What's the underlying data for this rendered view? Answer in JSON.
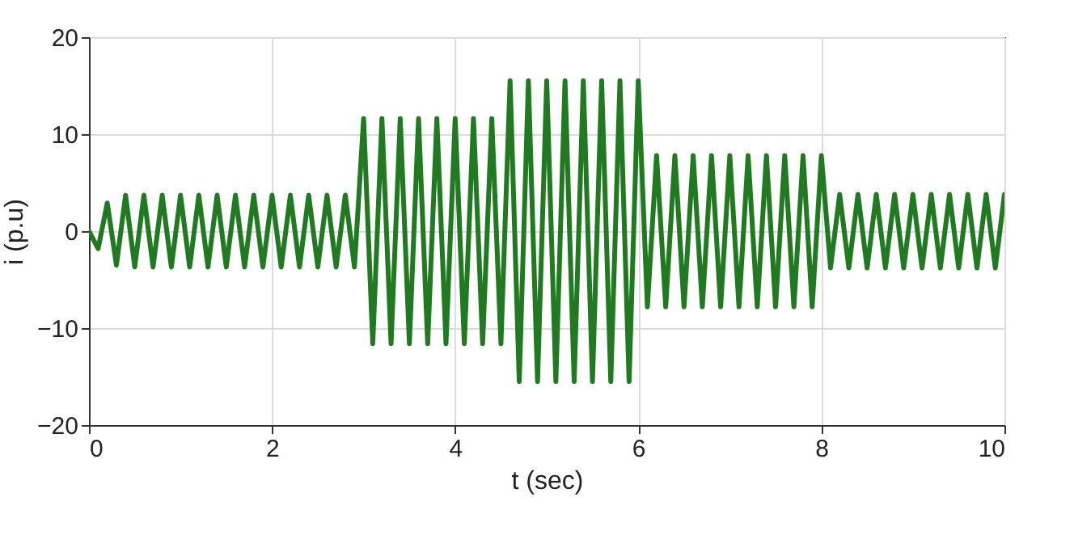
{
  "chart_data": {
    "type": "line",
    "xlabel": "t (sec)",
    "ylabel": "i (p.u)",
    "x": [
      0,
      0.1,
      0.2,
      0.3,
      0.4,
      0.5,
      0.6,
      0.7,
      0.8,
      0.9,
      1,
      1.1,
      1.2,
      1.3,
      1.4,
      1.5,
      1.6,
      1.7,
      1.8,
      1.9,
      2,
      2.1,
      2.2,
      2.3,
      2.4,
      2.5,
      2.6,
      2.7,
      2.8,
      2.9,
      3,
      3.1,
      3.2,
      3.3,
      3.4,
      3.5,
      3.6,
      3.7,
      3.8,
      3.9,
      4,
      4.1,
      4.2,
      4.3,
      4.4,
      4.5,
      4.6,
      4.7,
      4.8,
      4.9,
      5,
      5.1,
      5.2,
      5.3,
      5.4,
      5.5,
      5.6,
      5.7,
      5.8,
      5.9,
      6,
      6.1,
      6.2,
      6.3,
      6.4,
      6.5,
      6.6,
      6.7,
      6.8,
      6.9,
      7,
      7.1,
      7.2,
      7.3,
      7.4,
      7.5,
      7.6,
      7.7,
      7.8,
      7.9,
      8,
      8.1,
      8.2,
      8.3,
      8.4,
      8.5,
      8.6,
      8.7,
      8.8,
      8.9,
      9,
      9.1,
      9.2,
      9.3,
      9.4,
      9.5,
      9.6,
      9.7,
      9.8,
      9.9,
      10
    ],
    "series": [
      {
        "color": "#217a21",
        "values": [
          0,
          -1.8,
          2.9,
          -3.5,
          3.7,
          -3.7,
          3.7,
          -3.7,
          3.7,
          -3.7,
          3.7,
          -3.7,
          3.7,
          -3.7,
          3.7,
          -3.7,
          3.7,
          -3.7,
          3.7,
          -3.7,
          3.7,
          -3.7,
          3.7,
          -3.7,
          3.7,
          -3.7,
          3.7,
          -3.7,
          3.7,
          -3.7,
          11.6,
          -11.6,
          11.6,
          -11.6,
          11.6,
          -11.6,
          11.6,
          -11.6,
          11.6,
          -11.6,
          11.6,
          -11.6,
          11.6,
          -11.6,
          11.6,
          -11.6,
          15.5,
          -15.5,
          15.5,
          -15.5,
          15.5,
          -15.5,
          15.5,
          -15.5,
          15.5,
          -15.5,
          15.5,
          -15.5,
          15.5,
          -15.5,
          15.5,
          -7.8,
          7.8,
          -7.8,
          7.8,
          -7.8,
          7.8,
          -7.8,
          7.8,
          -7.8,
          7.8,
          -7.8,
          7.8,
          -7.8,
          7.8,
          -7.8,
          7.8,
          -7.8,
          7.8,
          -7.8,
          7.8,
          -3.8,
          3.8,
          -3.8,
          3.8,
          -3.8,
          3.8,
          -3.8,
          3.8,
          -3.8,
          3.8,
          -3.8,
          3.8,
          -3.8,
          3.8,
          -3.8,
          3.8,
          -3.8,
          3.8,
          -3.8,
          3.8
        ]
      }
    ],
    "xlim": [
      0,
      10
    ],
    "xticks": [
      0,
      2,
      4,
      6,
      8,
      10
    ],
    "ylim": [
      -20,
      20
    ],
    "yticks": [
      -20,
      -10,
      0,
      10,
      20
    ],
    "grid": true
  }
}
